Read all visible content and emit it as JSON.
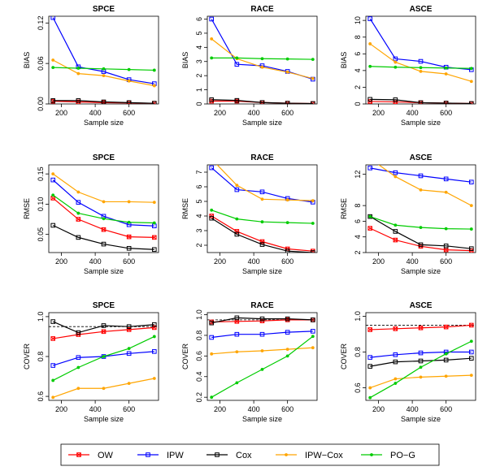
{
  "legend": [
    {
      "name": "OW",
      "color": "#ff0000",
      "marker": "x-square"
    },
    {
      "name": "IPW",
      "color": "#0000ff",
      "marker": "square"
    },
    {
      "name": "Cox",
      "color": "#000000",
      "marker": "square"
    },
    {
      "name": "IPW−Cox",
      "color": "#ffa500",
      "marker": "dot"
    },
    {
      "name": "PO−G",
      "color": "#00cc00",
      "marker": "dot"
    }
  ],
  "chart_data": [
    {
      "type": "line",
      "title": "SPCE",
      "xlabel": "Sample size",
      "ylabel": "BIAS",
      "x": [
        150,
        300,
        450,
        600,
        750
      ],
      "xlim": [
        125,
        775
      ],
      "xticks": [
        200,
        400,
        600
      ],
      "ylim": [
        0,
        0.13
      ],
      "yticks": [
        0.0,
        0.06,
        0.12
      ],
      "ytick_labels": [
        "0.00",
        "0.06",
        "0.12"
      ],
      "series": [
        {
          "name": "OW",
          "values": [
            0.004,
            0.003,
            0.002,
            0.0015,
            0.001
          ]
        },
        {
          "name": "IPW",
          "values": [
            0.128,
            0.055,
            0.048,
            0.036,
            0.03
          ]
        },
        {
          "name": "Cox",
          "values": [
            0.005,
            0.005,
            0.003,
            0.002,
            0.001
          ]
        },
        {
          "name": "IPW−Cox",
          "values": [
            0.065,
            0.045,
            0.042,
            0.034,
            0.027
          ]
        },
        {
          "name": "PO−G",
          "values": [
            0.054,
            0.053,
            0.052,
            0.051,
            0.05
          ]
        }
      ]
    },
    {
      "type": "line",
      "title": "RACE",
      "xlabel": "Sample size",
      "ylabel": "BIAS",
      "x": [
        150,
        300,
        450,
        600,
        750
      ],
      "xlim": [
        125,
        775
      ],
      "xticks": [
        200,
        400,
        600
      ],
      "ylim": [
        0,
        6.2
      ],
      "yticks": [
        0,
        1,
        2,
        3,
        4,
        5,
        6
      ],
      "ytick_labels": [
        "0",
        "1",
        "2",
        "3",
        "4",
        "5",
        "6"
      ],
      "series": [
        {
          "name": "OW",
          "values": [
            0.2,
            0.2,
            0.1,
            0.05,
            0.03
          ]
        },
        {
          "name": "IPW",
          "values": [
            6.0,
            2.8,
            2.7,
            2.3,
            1.75
          ]
        },
        {
          "name": "Cox",
          "values": [
            0.3,
            0.25,
            0.1,
            0.05,
            0.03
          ]
        },
        {
          "name": "IPW−Cox",
          "values": [
            4.6,
            3.2,
            2.6,
            2.25,
            1.8
          ]
        },
        {
          "name": "PO−G",
          "values": [
            3.25,
            3.25,
            3.2,
            3.18,
            3.15
          ]
        }
      ]
    },
    {
      "type": "line",
      "title": "ASCE",
      "xlabel": "Sample size",
      "ylabel": "BIAS",
      "x": [
        150,
        300,
        450,
        600,
        750
      ],
      "xlim": [
        125,
        775
      ],
      "xticks": [
        200,
        400,
        600
      ],
      "ylim": [
        0,
        10.5
      ],
      "yticks": [
        0,
        2,
        4,
        6,
        8,
        10
      ],
      "ytick_labels": [
        "0",
        "2",
        "4",
        "6",
        "8",
        "10"
      ],
      "series": [
        {
          "name": "OW",
          "values": [
            0.3,
            0.25,
            0.15,
            0.1,
            0.05
          ]
        },
        {
          "name": "IPW",
          "values": [
            10.2,
            5.4,
            5.1,
            4.4,
            4.1
          ]
        },
        {
          "name": "Cox",
          "values": [
            0.55,
            0.5,
            0.15,
            0.1,
            0.05
          ]
        },
        {
          "name": "IPW−Cox",
          "values": [
            7.2,
            5.0,
            3.9,
            3.6,
            2.7
          ]
        },
        {
          "name": "PO−G",
          "values": [
            4.5,
            4.4,
            4.35,
            4.3,
            4.25
          ]
        }
      ]
    },
    {
      "type": "line",
      "title": "SPCE",
      "xlabel": "Sample size",
      "ylabel": "RMSE",
      "x": [
        150,
        300,
        450,
        600,
        750
      ],
      "xlim": [
        125,
        775
      ],
      "xticks": [
        200,
        400,
        600
      ],
      "ylim": [
        0.02,
        0.165
      ],
      "yticks": [
        0.05,
        0.1,
        0.15
      ],
      "ytick_labels": [
        "0.05",
        "0.10",
        "0.15"
      ],
      "series": [
        {
          "name": "OW",
          "values": [
            0.11,
            0.075,
            0.058,
            0.046,
            0.045
          ]
        },
        {
          "name": "IPW",
          "values": [
            0.14,
            0.103,
            0.08,
            0.066,
            0.064
          ]
        },
        {
          "name": "Cox",
          "values": [
            0.065,
            0.045,
            0.034,
            0.027,
            0.025
          ]
        },
        {
          "name": "IPW−Cox",
          "values": [
            0.15,
            0.12,
            0.104,
            0.104,
            0.103
          ]
        },
        {
          "name": "PO−G",
          "values": [
            0.115,
            0.085,
            0.076,
            0.07,
            0.069
          ]
        }
      ]
    },
    {
      "type": "line",
      "title": "RACE",
      "xlabel": "Sample size",
      "ylabel": "RMSE",
      "x": [
        150,
        300,
        450,
        600,
        750
      ],
      "xlim": [
        125,
        775
      ],
      "xticks": [
        200,
        400,
        600
      ],
      "ylim": [
        1.5,
        7.5
      ],
      "yticks": [
        2,
        3,
        4,
        5,
        6,
        7
      ],
      "ytick_labels": [
        "2",
        "3",
        "4",
        "5",
        "6",
        "7"
      ],
      "series": [
        {
          "name": "OW",
          "values": [
            4.0,
            2.95,
            2.25,
            1.75,
            1.6
          ]
        },
        {
          "name": "IPW",
          "values": [
            7.3,
            5.8,
            5.65,
            5.2,
            4.95
          ]
        },
        {
          "name": "Cox",
          "values": [
            3.85,
            2.75,
            2.05,
            1.6,
            1.5
          ]
        },
        {
          "name": "IPW−Cox",
          "values": [
            7.9,
            6.1,
            5.15,
            5.1,
            5.05
          ]
        },
        {
          "name": "PO−G",
          "values": [
            4.4,
            3.8,
            3.6,
            3.55,
            3.5
          ]
        }
      ]
    },
    {
      "type": "line",
      "title": "ASCE",
      "xlabel": "Sample size",
      "ylabel": "RMSE",
      "x": [
        150,
        300,
        450,
        600,
        750
      ],
      "xlim": [
        125,
        775
      ],
      "xticks": [
        200,
        400,
        600
      ],
      "ylim": [
        2,
        13.2
      ],
      "yticks": [
        2,
        4,
        6,
        8,
        12
      ],
      "ytick_labels": [
        "2",
        "4",
        "6",
        "8",
        "12"
      ],
      "series": [
        {
          "name": "OW",
          "values": [
            5.1,
            3.6,
            2.8,
            2.35,
            2.25
          ]
        },
        {
          "name": "IPW",
          "values": [
            12.8,
            12.2,
            11.8,
            11.4,
            11.0
          ]
        },
        {
          "name": "Cox",
          "values": [
            6.6,
            4.7,
            3.0,
            2.85,
            2.5
          ]
        },
        {
          "name": "IPW−Cox",
          "values": [
            14.0,
            11.7,
            10.0,
            9.7,
            8.0
          ]
        },
        {
          "name": "PO−G",
          "values": [
            6.6,
            5.5,
            5.2,
            5.05,
            5.0
          ]
        }
      ]
    },
    {
      "type": "line",
      "title": "SPCE",
      "xlabel": "Sample size",
      "ylabel": "COVER",
      "x": [
        150,
        300,
        450,
        600,
        750
      ],
      "xlim": [
        125,
        775
      ],
      "xticks": [
        200,
        400,
        600
      ],
      "ylim": [
        0.58,
        1.02
      ],
      "yticks": [
        0.6,
        0.8,
        1.0
      ],
      "ytick_labels": [
        "0.6",
        "0.8",
        "1.0"
      ],
      "reference_line": 0.95,
      "series": [
        {
          "name": "OW",
          "values": [
            0.89,
            0.91,
            0.925,
            0.935,
            0.945
          ]
        },
        {
          "name": "IPW",
          "values": [
            0.755,
            0.795,
            0.8,
            0.815,
            0.825
          ]
        },
        {
          "name": "Cox",
          "values": [
            0.975,
            0.92,
            0.955,
            0.95,
            0.96
          ]
        },
        {
          "name": "IPW−Cox",
          "values": [
            0.595,
            0.64,
            0.64,
            0.665,
            0.69
          ]
        },
        {
          "name": "PO−G",
          "values": [
            0.68,
            0.745,
            0.8,
            0.84,
            0.9
          ]
        }
      ]
    },
    {
      "type": "line",
      "title": "RACE",
      "xlabel": "Sample size",
      "ylabel": "COVER",
      "x": [
        150,
        300,
        450,
        600,
        750
      ],
      "xlim": [
        125,
        775
      ],
      "xticks": [
        200,
        400,
        600
      ],
      "ylim": [
        0.17,
        1.02
      ],
      "yticks": [
        0.2,
        0.4,
        0.6,
        0.8,
        1.0
      ],
      "ytick_labels": [
        "0.2",
        "0.4",
        "0.6",
        "0.8",
        "1.0"
      ],
      "reference_line": 0.95,
      "series": [
        {
          "name": "OW",
          "values": [
            0.93,
            0.935,
            0.94,
            0.95,
            0.95
          ]
        },
        {
          "name": "IPW",
          "values": [
            0.78,
            0.81,
            0.81,
            0.83,
            0.84
          ]
        },
        {
          "name": "Cox",
          "values": [
            0.92,
            0.97,
            0.96,
            0.96,
            0.95
          ]
        },
        {
          "name": "IPW−Cox",
          "values": [
            0.62,
            0.64,
            0.65,
            0.665,
            0.68
          ]
        },
        {
          "name": "PO−G",
          "values": [
            0.2,
            0.34,
            0.47,
            0.6,
            0.79
          ]
        }
      ]
    },
    {
      "type": "line",
      "title": "ASCE",
      "xlabel": "Sample size",
      "ylabel": "COVER",
      "x": [
        150,
        300,
        450,
        600,
        750
      ],
      "xlim": [
        125,
        775
      ],
      "xticks": [
        200,
        400,
        600
      ],
      "ylim": [
        0.53,
        1.02
      ],
      "yticks": [
        0.6,
        0.8,
        1.0
      ],
      "ytick_labels": [
        "0.6",
        "0.8",
        "1.0"
      ],
      "reference_line": 0.95,
      "series": [
        {
          "name": "OW",
          "values": [
            0.925,
            0.93,
            0.935,
            0.94,
            0.95
          ]
        },
        {
          "name": "IPW",
          "values": [
            0.77,
            0.785,
            0.795,
            0.8,
            0.8
          ]
        },
        {
          "name": "Cox",
          "values": [
            0.72,
            0.745,
            0.75,
            0.755,
            0.765
          ]
        },
        {
          "name": "IPW−Cox",
          "values": [
            0.6,
            0.65,
            0.66,
            0.665,
            0.67
          ]
        },
        {
          "name": "PO−G",
          "values": [
            0.545,
            0.625,
            0.715,
            0.79,
            0.86
          ]
        }
      ]
    }
  ]
}
